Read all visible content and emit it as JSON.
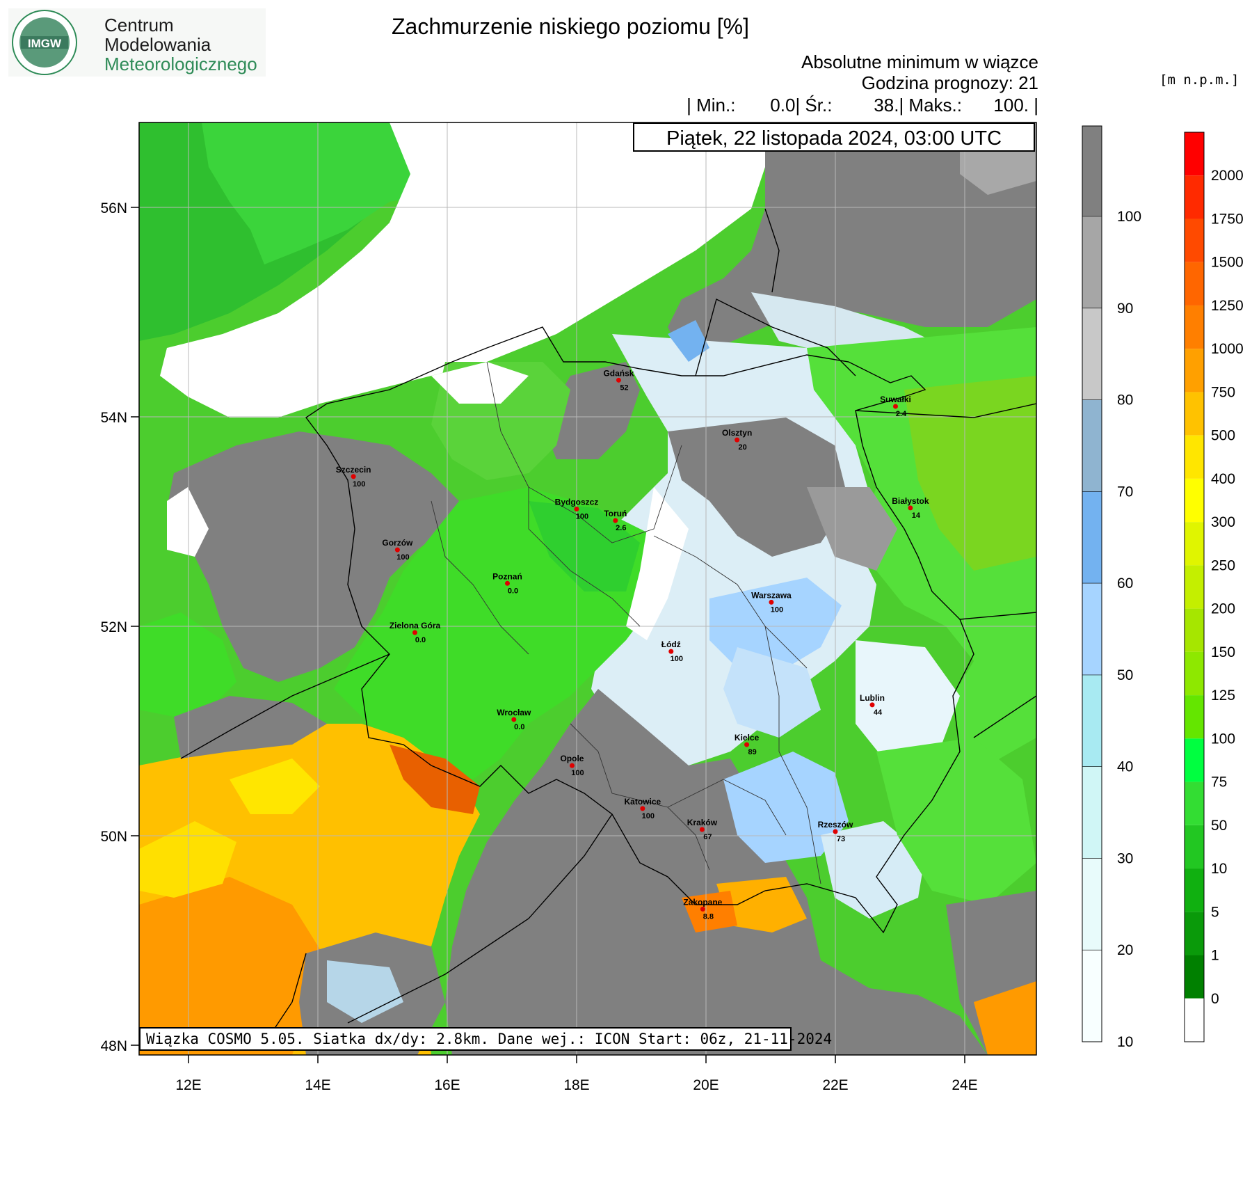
{
  "logo": {
    "badge_text": "IMGW",
    "line1": "Centrum",
    "line2": "Modelowania",
    "line3": "Meteorologicznego"
  },
  "title": "Zachmurzenie niskiego poziomu [%]",
  "subtitle": "Absolutne minimum w wiązce",
  "forecast_hour": "Godzina prognozy: 21",
  "stats": {
    "min_label": "| Min.:",
    "min_value": "0.0",
    "avg_label": "| Śr.:",
    "avg_value": "38.",
    "max_label": "| Maks.:",
    "max_value": "100. |"
  },
  "date_label": "Piątek, 22 listopada 2024, 03:00 UTC",
  "model_info": "Wiązka COSMO 5.05. Siatka dx/dy: 2.8km. Dane wej.: ICON Start: 06z, 21-11-2024",
  "terrain_unit": "[m n.p.m.]",
  "axes": {
    "lat_labels": [
      "56N",
      "54N",
      "52N",
      "50N",
      "48N"
    ],
    "lon_labels": [
      "12E",
      "14E",
      "16E",
      "18E",
      "20E",
      "22E",
      "24E"
    ]
  },
  "cloud_colorbar": {
    "labels": [
      "100",
      "90",
      "80",
      "70",
      "60",
      "50",
      "40",
      "30",
      "20",
      "10"
    ],
    "colors": [
      "#808080",
      "#a6a6a6",
      "#c8c8c8",
      "#8fb4d0",
      "#73b2f0",
      "#a6d4ff",
      "#a8eaf2",
      "#d0f6f6",
      "#e8fbfb",
      "#f8ffff"
    ]
  },
  "terrain_colorbar": {
    "labels": [
      "2000",
      "1750",
      "1500",
      "1250",
      "1000",
      "750",
      "500",
      "400",
      "300",
      "250",
      "200",
      "150",
      "125",
      "100",
      "75",
      "50",
      "10",
      "5",
      "1",
      "0"
    ],
    "colors": [
      "#ff0000",
      "#ff2a00",
      "#ff4a00",
      "#ff6600",
      "#ff7f00",
      "#ffa000",
      "#ffc200",
      "#ffe600",
      "#ffff00",
      "#e0f500",
      "#c4ef00",
      "#a6e600",
      "#8ee800",
      "#64e600",
      "#00ff40",
      "#33dd33",
      "#22c722",
      "#10b010",
      "#0a9a0a",
      "#008000",
      "#ffffff"
    ]
  },
  "cities": [
    {
      "name": "Gdańsk",
      "value": "52",
      "lon": 18.65,
      "lat": 54.35
    },
    {
      "name": "Suwałki",
      "value": "2.4",
      "lon": 22.93,
      "lat": 54.1
    },
    {
      "name": "Olsztyn",
      "value": "20",
      "lon": 20.48,
      "lat": 53.78
    },
    {
      "name": "Szczecin",
      "value": "100",
      "lon": 14.55,
      "lat": 53.43
    },
    {
      "name": "Bydgoszcz",
      "value": "100",
      "lon": 18.0,
      "lat": 53.12
    },
    {
      "name": "Toruń",
      "value": "2.6",
      "lon": 18.6,
      "lat": 53.01
    },
    {
      "name": "Białystok",
      "value": "14",
      "lon": 23.16,
      "lat": 53.13
    },
    {
      "name": "Gorzów",
      "value": "100",
      "lon": 15.23,
      "lat": 52.73
    },
    {
      "name": "Poznań",
      "value": "0.0",
      "lon": 16.93,
      "lat": 52.41
    },
    {
      "name": "Warszawa",
      "value": "100",
      "lon": 21.01,
      "lat": 52.23
    },
    {
      "name": "Zielona Góra",
      "value": "0.0",
      "lon": 15.5,
      "lat": 51.94
    },
    {
      "name": "Łódź",
      "value": "100",
      "lon": 19.46,
      "lat": 51.76
    },
    {
      "name": "Lublin",
      "value": "44",
      "lon": 22.57,
      "lat": 51.25
    },
    {
      "name": "Wrocław",
      "value": "0.0",
      "lon": 17.03,
      "lat": 51.11
    },
    {
      "name": "Kielce",
      "value": "89",
      "lon": 20.63,
      "lat": 50.87
    },
    {
      "name": "Opole",
      "value": "100",
      "lon": 17.93,
      "lat": 50.67
    },
    {
      "name": "Katowice",
      "value": "100",
      "lon": 19.02,
      "lat": 50.26
    },
    {
      "name": "Kraków",
      "value": "67",
      "lon": 19.94,
      "lat": 50.06
    },
    {
      "name": "Rzeszów",
      "value": "73",
      "lon": 22.0,
      "lat": 50.04
    },
    {
      "name": "Zakopane",
      "value": "8.8",
      "lon": 19.95,
      "lat": 49.3
    }
  ]
}
